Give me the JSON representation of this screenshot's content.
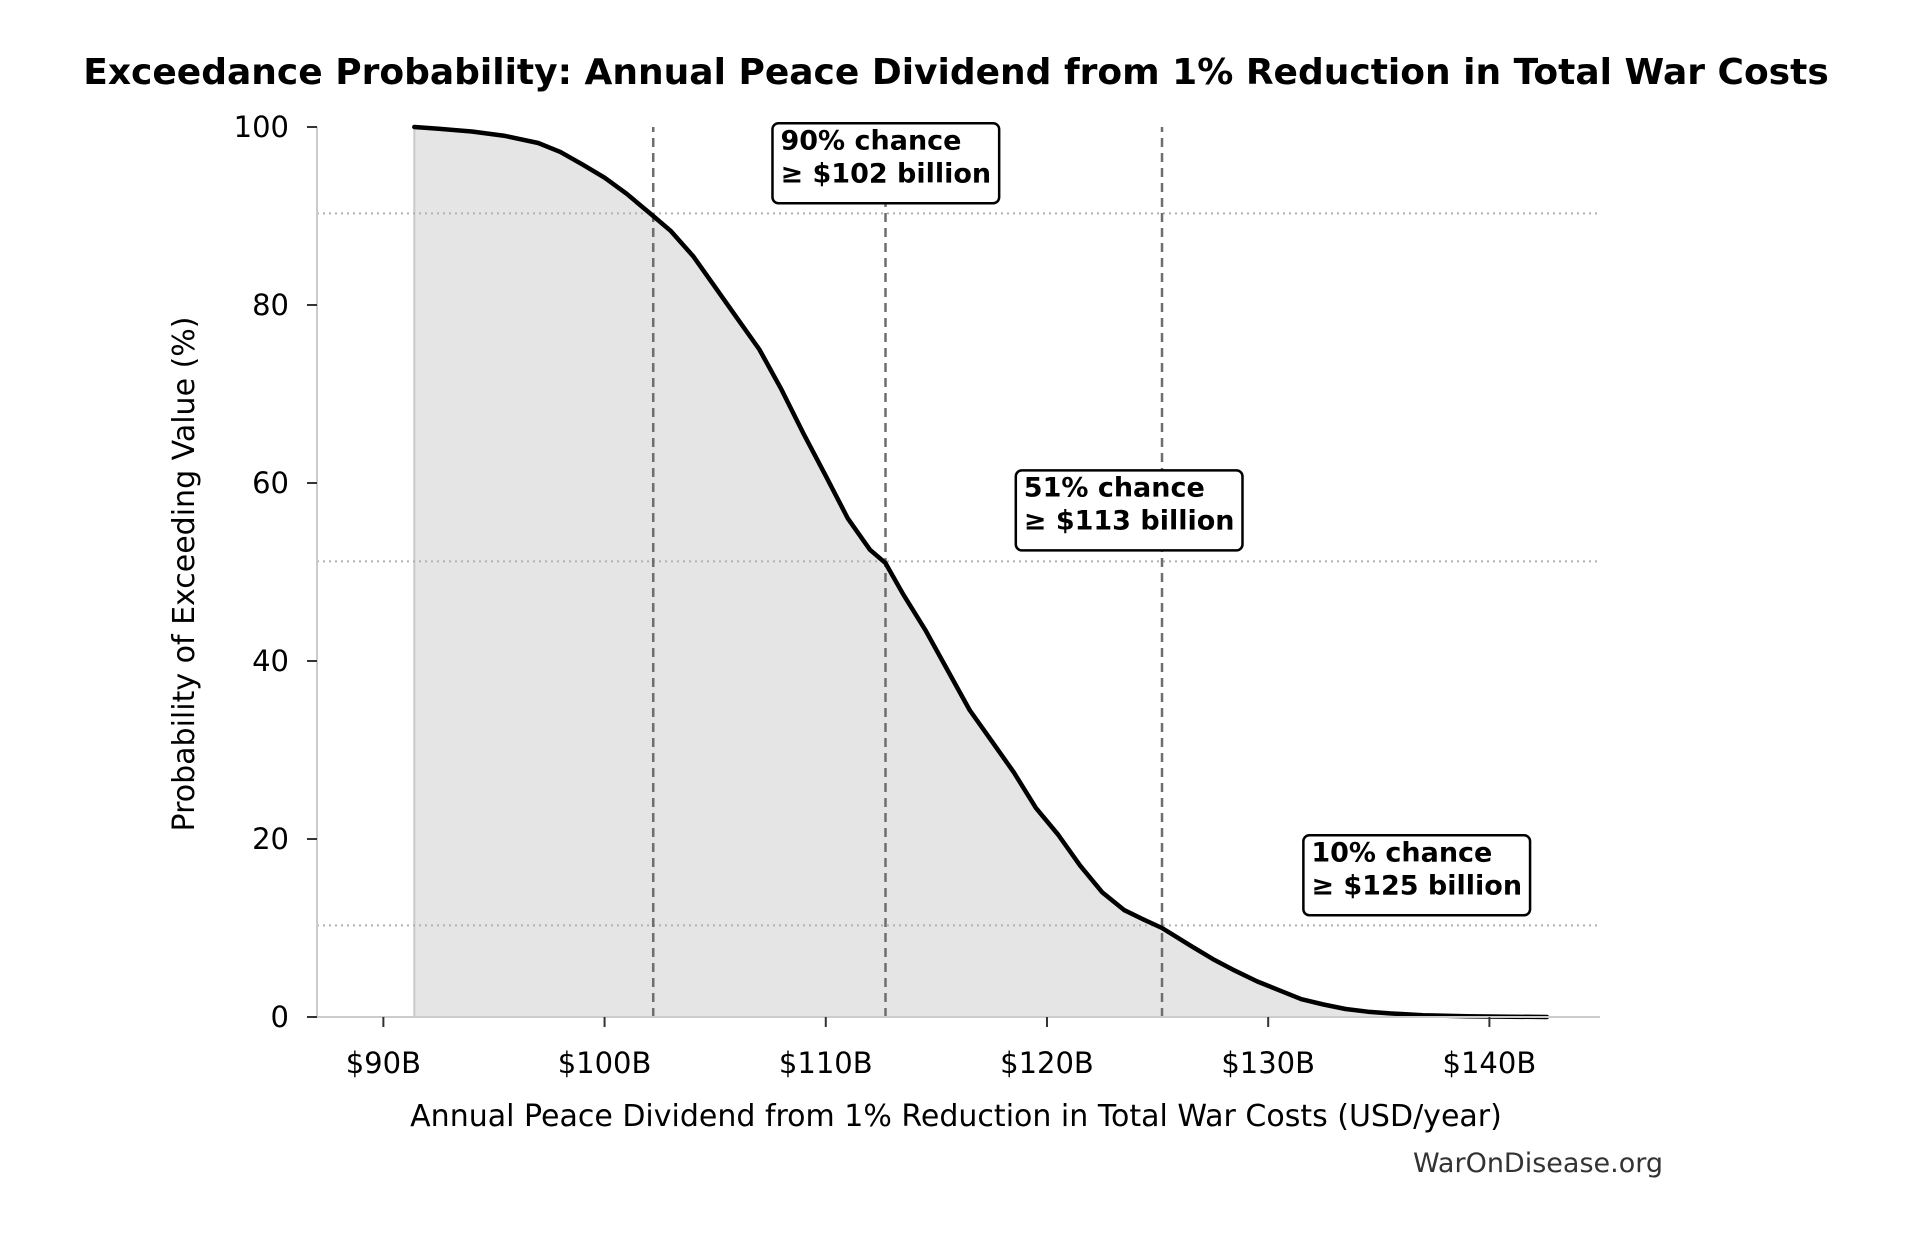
{
  "chart_data": {
    "type": "area",
    "title": "Exceedance Probability: Annual Peace Dividend from 1% Reduction in Total War Costs",
    "xlabel": "Annual Peace Dividend from 1% Reduction in Total War Costs (USD/year)",
    "ylabel": "Probability of Exceeding Value (%)",
    "xlim": [
      87,
      145
    ],
    "ylim": [
      0,
      100
    ],
    "x_ticks": [
      {
        "value": 90,
        "label": "$90B"
      },
      {
        "value": 100,
        "label": "$100B"
      },
      {
        "value": 110,
        "label": "$110B"
      },
      {
        "value": 120,
        "label": "$120B"
      },
      {
        "value": 130,
        "label": "$130B"
      },
      {
        "value": 140,
        "label": "$140B"
      }
    ],
    "y_ticks": [
      {
        "value": 0,
        "label": "0"
      },
      {
        "value": 20,
        "label": "20"
      },
      {
        "value": 40,
        "label": "40"
      },
      {
        "value": 60,
        "label": "60"
      },
      {
        "value": 80,
        "label": "80"
      },
      {
        "value": 100,
        "label": "100"
      }
    ],
    "grid": false,
    "series": [
      {
        "x": [
          91.4,
          92.5,
          94.0,
          95.5,
          97.0,
          98.0,
          99.0,
          100.0,
          101.0,
          102.2,
          103.0,
          104.0,
          105.0,
          106.0,
          107.0,
          108.0,
          109.0,
          110.0,
          111.0,
          112.0,
          112.7,
          113.5,
          114.5,
          115.5,
          116.5,
          117.5,
          118.5,
          119.5,
          120.5,
          121.5,
          122.5,
          123.5,
          124.5,
          125.2,
          126.5,
          127.5,
          128.5,
          129.5,
          130.5,
          131.5,
          132.5,
          133.5,
          134.5,
          135.5,
          137.0,
          139.0,
          141.0,
          142.6
        ],
        "y": [
          100,
          99.8,
          99.5,
          99.0,
          98.2,
          97.2,
          95.8,
          94.3,
          92.5,
          90.0,
          88.3,
          85.5,
          82.0,
          78.5,
          75.0,
          70.5,
          65.5,
          60.8,
          56.0,
          52.5,
          51.0,
          47.5,
          43.5,
          39.0,
          34.5,
          31.0,
          27.5,
          23.5,
          20.5,
          17.0,
          14.0,
          12.0,
          10.8,
          10.0,
          8.0,
          6.5,
          5.2,
          4.0,
          3.0,
          2.0,
          1.4,
          0.9,
          0.6,
          0.4,
          0.2,
          0.08,
          0.03,
          0.0
        ]
      }
    ],
    "reference_lines": {
      "vertical_x": [
        102.2,
        112.7,
        125.2
      ],
      "horizontal_y": [
        90.3,
        51.2,
        10.3
      ]
    },
    "annotations": [
      {
        "line1": "90% chance",
        "line2": "≥ $102 billion",
        "x": 107.5,
        "y": 97.5
      },
      {
        "line1": "51% chance",
        "line2": "≥ $113 billion",
        "x": 118.5,
        "y": 58.5
      },
      {
        "line1": "10% chance",
        "line2": "≥ $125 billion",
        "x": 131.5,
        "y": 17.5
      }
    ],
    "source": "WarOnDisease.org",
    "colors": {
      "line": "#000000",
      "fill": "#e5e5e5",
      "fill_edge": "#c8c8c8",
      "reference_line": "#6e6e6e",
      "horizontal_line": "#b0b0b0",
      "axis": "#cccccc",
      "tick": "#333333"
    }
  }
}
